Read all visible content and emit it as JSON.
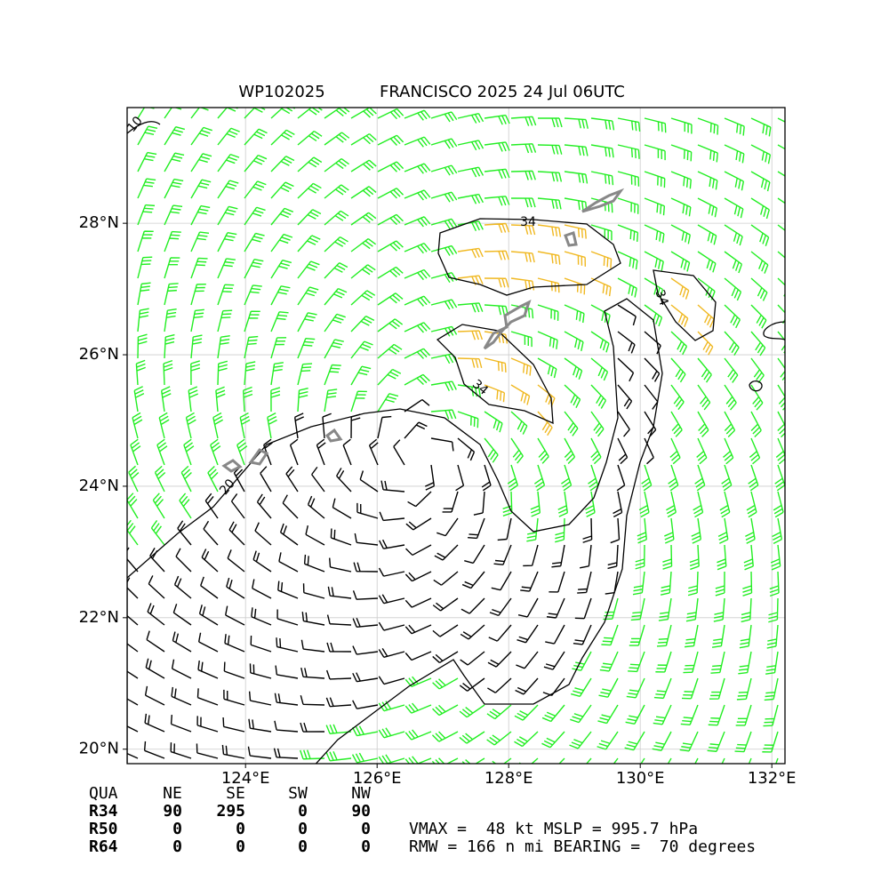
{
  "header": {
    "storm_id": "WP102025",
    "title": "FRANCISCO 2025 24 Jul 06UTC"
  },
  "map": {
    "xlim": [
      122.2,
      132.2
    ],
    "ylim": [
      19.78,
      29.76
    ],
    "grid": true,
    "xticks": [
      {
        "value": 124,
        "label": "124°E"
      },
      {
        "value": 126,
        "label": "126°E"
      },
      {
        "value": 128,
        "label": "128°E"
      },
      {
        "value": 130,
        "label": "130°E"
      },
      {
        "value": 132,
        "label": "132°E"
      }
    ],
    "yticks": [
      {
        "value": 20,
        "label": "20°N"
      },
      {
        "value": 22,
        "label": "22°N"
      },
      {
        "value": 24,
        "label": "24°N"
      },
      {
        "value": 26,
        "label": "26°N"
      },
      {
        "value": 28,
        "label": "28°N"
      }
    ],
    "contour_labels": [
      "34",
      "34",
      "34",
      "20",
      "10"
    ]
  },
  "table": {
    "header": [
      "QUA",
      "NE",
      "SE",
      "SW",
      "NW"
    ],
    "rows": [
      [
        "R34",
        90,
        295,
        0,
        90
      ],
      [
        "R50",
        0,
        0,
        0,
        0
      ],
      [
        "R64",
        0,
        0,
        0,
        0
      ]
    ]
  },
  "summary": [
    "VMAX =  48 kt MSLP = 995.7 hPa",
    "RMW = 166 n mi BEARING =  70 degrees"
  ]
}
